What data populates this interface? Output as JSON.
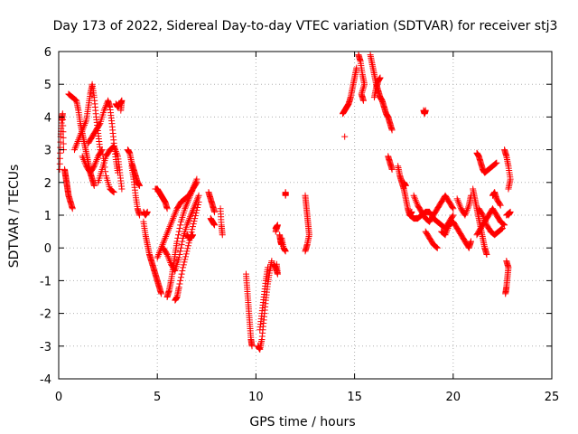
{
  "chart_data": {
    "type": "scatter",
    "title": "Day 173 of 2022, Sidereal Day-to-day VTEC variation (SDTVAR) for receiver stj3",
    "xlabel": "GPS time / hours",
    "ylabel": "SDTVAR / TECUs",
    "xlim": [
      0,
      25
    ],
    "ylim": [
      -4,
      6
    ],
    "xticks": [
      "0",
      "5",
      "10",
      "15",
      "20",
      "25"
    ],
    "yticks": [
      "-4",
      "-3",
      "-2",
      "-1",
      "0",
      "1",
      "2",
      "3",
      "4",
      "5",
      "6"
    ],
    "grid": true,
    "marker": "+",
    "color": "#ff0000",
    "tracks": [
      [
        [
          0.05,
          2.4
        ],
        [
          0.1,
          3.4
        ],
        [
          0.15,
          3.9
        ],
        [
          0.2,
          4.1
        ],
        [
          0.25,
          3.0
        ]
      ],
      [
        [
          0.3,
          2.4
        ],
        [
          0.35,
          2.2
        ],
        [
          0.4,
          2.0
        ],
        [
          0.45,
          1.8
        ],
        [
          0.5,
          1.6
        ],
        [
          0.6,
          1.4
        ],
        [
          0.7,
          1.2
        ]
      ],
      [
        [
          0.5,
          4.7
        ],
        [
          0.7,
          4.6
        ],
        [
          0.9,
          4.5
        ],
        [
          1.0,
          4.2
        ],
        [
          1.1,
          3.8
        ],
        [
          1.2,
          3.5
        ],
        [
          1.3,
          3.2
        ],
        [
          1.4,
          2.9
        ],
        [
          1.5,
          2.6
        ],
        [
          1.6,
          2.3
        ],
        [
          1.7,
          2.1
        ],
        [
          1.8,
          1.9
        ]
      ],
      [
        [
          0.8,
          3.0
        ],
        [
          1.0,
          3.3
        ],
        [
          1.2,
          3.6
        ],
        [
          1.4,
          3.9
        ],
        [
          1.5,
          4.3
        ],
        [
          1.6,
          4.7
        ],
        [
          1.7,
          5.0
        ],
        [
          1.8,
          4.6
        ],
        [
          1.9,
          4.0
        ],
        [
          2.0,
          3.5
        ],
        [
          2.1,
          3.0
        ]
      ],
      [
        [
          1.5,
          3.2
        ],
        [
          1.7,
          3.4
        ],
        [
          1.9,
          3.6
        ],
        [
          2.1,
          3.8
        ],
        [
          2.3,
          4.2
        ],
        [
          2.5,
          4.5
        ],
        [
          2.6,
          4.3
        ],
        [
          2.7,
          3.8
        ],
        [
          2.8,
          3.2
        ],
        [
          2.9,
          2.7
        ],
        [
          3.0,
          2.3
        ]
      ],
      [
        [
          2.0,
          2.0
        ],
        [
          2.2,
          2.4
        ],
        [
          2.4,
          2.8
        ],
        [
          2.6,
          3.0
        ],
        [
          2.8,
          3.1
        ],
        [
          3.0,
          2.8
        ],
        [
          3.1,
          2.3
        ],
        [
          3.2,
          1.8
        ]
      ],
      [
        [
          1.2,
          2.8
        ],
        [
          1.4,
          2.5
        ],
        [
          1.6,
          2.3
        ],
        [
          1.8,
          2.5
        ],
        [
          2.0,
          2.8
        ],
        [
          2.2,
          3.0
        ],
        [
          2.4,
          2.2
        ],
        [
          2.6,
          1.8
        ],
        [
          2.8,
          1.7
        ]
      ],
      [
        [
          2.9,
          4.4
        ],
        [
          3.0,
          4.3
        ],
        [
          3.1,
          4.4
        ],
        [
          3.2,
          4.5
        ],
        [
          3.15,
          4.2
        ]
      ],
      [
        [
          3.5,
          3.0
        ],
        [
          3.6,
          2.9
        ],
        [
          3.7,
          2.6
        ],
        [
          3.8,
          2.4
        ],
        [
          3.9,
          2.2
        ],
        [
          4.0,
          2.0
        ],
        [
          4.1,
          1.9
        ]
      ],
      [
        [
          3.7,
          2.5
        ],
        [
          3.8,
          2.1
        ],
        [
          3.9,
          1.6
        ],
        [
          4.0,
          1.2
        ],
        [
          4.1,
          1.0
        ]
      ],
      [
        [
          4.3,
          1.1
        ],
        [
          4.4,
          1.0
        ],
        [
          4.5,
          1.1
        ]
      ],
      [
        [
          4.3,
          0.8
        ],
        [
          4.4,
          0.4
        ],
        [
          4.5,
          0.1
        ],
        [
          4.6,
          -0.2
        ],
        [
          4.7,
          -0.4
        ],
        [
          4.8,
          -0.6
        ],
        [
          4.9,
          -0.8
        ],
        [
          5.0,
          -1.0
        ],
        [
          5.1,
          -1.2
        ],
        [
          5.2,
          -1.4
        ]
      ],
      [
        [
          4.9,
          1.8
        ],
        [
          5.0,
          1.8
        ],
        [
          5.1,
          1.7
        ],
        [
          5.2,
          1.6
        ],
        [
          5.3,
          1.5
        ],
        [
          5.4,
          1.4
        ],
        [
          5.5,
          1.2
        ]
      ],
      [
        [
          5.0,
          -0.3
        ],
        [
          5.2,
          0.0
        ],
        [
          5.4,
          0.3
        ],
        [
          5.6,
          0.6
        ],
        [
          5.8,
          0.9
        ],
        [
          6.0,
          1.2
        ],
        [
          6.2,
          1.4
        ],
        [
          6.4,
          1.5
        ],
        [
          6.6,
          1.6
        ],
        [
          6.8,
          1.8
        ],
        [
          7.0,
          2.0
        ]
      ],
      [
        [
          5.5,
          -1.5
        ],
        [
          5.6,
          -1.3
        ],
        [
          5.7,
          -1.0
        ],
        [
          5.8,
          -0.6
        ],
        [
          5.9,
          -0.2
        ],
        [
          6.0,
          0.2
        ],
        [
          6.2,
          0.8
        ],
        [
          6.4,
          1.2
        ],
        [
          6.6,
          1.5
        ],
        [
          6.8,
          1.8
        ],
        [
          7.0,
          2.1
        ]
      ],
      [
        [
          5.3,
          0.0
        ],
        [
          5.5,
          -0.2
        ],
        [
          5.7,
          -0.5
        ],
        [
          5.9,
          -0.7
        ],
        [
          6.1,
          -0.3
        ],
        [
          6.3,
          0.3
        ],
        [
          6.5,
          0.7
        ],
        [
          6.7,
          1.0
        ],
        [
          6.9,
          1.3
        ],
        [
          7.1,
          1.6
        ]
      ],
      [
        [
          5.9,
          -1.6
        ],
        [
          6.0,
          -1.5
        ],
        [
          6.1,
          -1.2
        ],
        [
          6.3,
          -0.6
        ],
        [
          6.5,
          -0.1
        ],
        [
          6.7,
          0.4
        ],
        [
          6.9,
          0.9
        ],
        [
          7.1,
          1.4
        ]
      ],
      [
        [
          6.5,
          0.4
        ],
        [
          6.6,
          0.3
        ],
        [
          6.7,
          0.3
        ],
        [
          6.8,
          0.4
        ]
      ],
      [
        [
          7.6,
          1.7
        ],
        [
          7.7,
          1.5
        ],
        [
          7.8,
          1.3
        ],
        [
          7.9,
          1.1
        ]
      ],
      [
        [
          7.7,
          0.9
        ],
        [
          7.8,
          0.8
        ],
        [
          7.9,
          0.7
        ]
      ],
      [
        [
          8.2,
          1.2
        ],
        [
          8.25,
          0.7
        ],
        [
          8.3,
          0.4
        ]
      ],
      [
        [
          9.5,
          -0.8
        ],
        [
          9.55,
          -1.2
        ],
        [
          9.6,
          -1.6
        ],
        [
          9.65,
          -2.0
        ],
        [
          9.7,
          -2.4
        ],
        [
          9.75,
          -2.8
        ],
        [
          9.8,
          -3.0
        ]
      ],
      [
        [
          10.1,
          -3.0
        ],
        [
          10.2,
          -3.1
        ],
        [
          10.3,
          -2.8
        ],
        [
          10.4,
          -2.2
        ],
        [
          10.5,
          -1.6
        ],
        [
          10.6,
          -1.1
        ],
        [
          10.7,
          -0.7
        ],
        [
          10.8,
          -0.4
        ]
      ],
      [
        [
          10.2,
          -2.5
        ],
        [
          10.3,
          -2.0
        ],
        [
          10.4,
          -1.5
        ],
        [
          10.5,
          -1.0
        ],
        [
          10.6,
          -0.6
        ]
      ],
      [
        [
          10.9,
          -0.5
        ],
        [
          11.0,
          -0.6
        ],
        [
          11.1,
          -0.8
        ],
        [
          11.05,
          -0.5
        ]
      ],
      [
        [
          11.2,
          0.4
        ],
        [
          11.25,
          0.2
        ],
        [
          11.3,
          0.1
        ]
      ],
      [
        [
          11.0,
          0.6
        ],
        [
          11.1,
          0.7
        ],
        [
          11.0,
          0.5
        ]
      ],
      [
        [
          11.5,
          1.7
        ],
        [
          11.5,
          1.6
        ]
      ],
      [
        [
          11.3,
          0.3
        ],
        [
          11.4,
          0.0
        ],
        [
          11.5,
          -0.1
        ]
      ],
      [
        [
          12.5,
          1.6
        ],
        [
          12.55,
          1.3
        ],
        [
          12.6,
          1.0
        ],
        [
          12.65,
          0.7
        ],
        [
          12.7,
          0.4
        ],
        [
          12.6,
          0.1
        ],
        [
          12.5,
          -0.1
        ]
      ],
      [
        [
          14.5,
          3.4
        ]
      ],
      [
        [
          14.4,
          4.1
        ],
        [
          14.5,
          4.2
        ],
        [
          14.6,
          4.3
        ],
        [
          14.7,
          4.4
        ],
        [
          14.8,
          4.6
        ],
        [
          14.9,
          4.9
        ],
        [
          15.0,
          5.2
        ],
        [
          15.1,
          5.5
        ]
      ],
      [
        [
          15.2,
          5.9
        ],
        [
          15.3,
          5.7
        ],
        [
          15.4,
          5.3
        ],
        [
          15.5,
          5.0
        ],
        [
          15.35,
          4.7
        ],
        [
          15.45,
          4.5
        ]
      ],
      [
        [
          15.8,
          5.9
        ],
        [
          15.9,
          5.6
        ],
        [
          16.0,
          5.3
        ],
        [
          16.1,
          5.0
        ],
        [
          16.2,
          4.8
        ],
        [
          16.3,
          4.6
        ],
        [
          16.4,
          4.5
        ],
        [
          16.5,
          4.3
        ],
        [
          16.6,
          4.1
        ],
        [
          16.7,
          4.0
        ],
        [
          16.8,
          3.8
        ],
        [
          16.9,
          3.6
        ]
      ],
      [
        [
          16.0,
          4.6
        ],
        [
          16.1,
          4.9
        ],
        [
          16.2,
          5.1
        ],
        [
          16.3,
          5.2
        ]
      ],
      [
        [
          16.7,
          2.8
        ],
        [
          16.8,
          2.6
        ],
        [
          16.9,
          2.4
        ]
      ],
      [
        [
          17.2,
          2.5
        ],
        [
          17.3,
          2.2
        ],
        [
          17.4,
          2.0
        ],
        [
          17.5,
          1.8
        ],
        [
          17.6,
          1.5
        ],
        [
          17.7,
          1.2
        ],
        [
          17.8,
          1.0
        ],
        [
          17.9,
          1.1
        ]
      ],
      [
        [
          17.5,
          2.0
        ],
        [
          17.6,
          1.9
        ]
      ],
      [
        [
          18.0,
          1.6
        ],
        [
          18.2,
          1.3
        ],
        [
          18.4,
          1.1
        ],
        [
          18.6,
          0.9
        ],
        [
          18.8,
          0.8
        ],
        [
          19.0,
          1.0
        ],
        [
          19.2,
          1.2
        ],
        [
          19.4,
          1.4
        ],
        [
          19.6,
          1.6
        ],
        [
          19.8,
          1.4
        ],
        [
          20.0,
          1.2
        ]
      ],
      [
        [
          17.8,
          1.0
        ],
        [
          18.0,
          0.9
        ],
        [
          18.2,
          0.9
        ],
        [
          18.4,
          1.0
        ],
        [
          18.6,
          1.1
        ],
        [
          18.8,
          1.1
        ],
        [
          19.0,
          0.9
        ],
        [
          19.2,
          0.8
        ],
        [
          19.4,
          0.7
        ],
        [
          19.6,
          0.6
        ],
        [
          19.8,
          0.8
        ],
        [
          20.0,
          1.0
        ]
      ],
      [
        [
          18.5,
          4.2
        ],
        [
          18.55,
          4.1
        ],
        [
          18.6,
          4.2
        ]
      ],
      [
        [
          18.6,
          0.5
        ],
        [
          18.8,
          0.3
        ],
        [
          19.0,
          0.1
        ],
        [
          19.2,
          0.0
        ]
      ],
      [
        [
          19.4,
          0.5
        ],
        [
          19.6,
          0.4
        ],
        [
          19.8,
          0.7
        ],
        [
          20.0,
          0.8
        ],
        [
          20.2,
          0.6
        ],
        [
          20.4,
          0.4
        ],
        [
          20.6,
          0.2
        ],
        [
          20.8,
          0.0
        ],
        [
          20.9,
          0.2
        ]
      ],
      [
        [
          20.2,
          1.5
        ],
        [
          20.4,
          1.2
        ],
        [
          20.6,
          1.0
        ],
        [
          20.8,
          1.3
        ],
        [
          20.9,
          1.6
        ]
      ],
      [
        [
          21.2,
          2.9
        ],
        [
          21.3,
          2.8
        ],
        [
          21.4,
          2.6
        ],
        [
          21.5,
          2.4
        ],
        [
          21.6,
          2.3
        ],
        [
          21.8,
          2.4
        ],
        [
          22.0,
          2.5
        ],
        [
          22.2,
          2.6
        ]
      ],
      [
        [
          21.0,
          1.8
        ],
        [
          21.1,
          1.5
        ],
        [
          21.2,
          1.2
        ],
        [
          21.3,
          0.9
        ],
        [
          21.4,
          0.6
        ],
        [
          21.5,
          0.3
        ],
        [
          21.6,
          0.0
        ],
        [
          21.7,
          -0.2
        ]
      ],
      [
        [
          21.2,
          0.4
        ],
        [
          21.4,
          0.6
        ],
        [
          21.6,
          0.8
        ],
        [
          21.8,
          1.0
        ],
        [
          22.0,
          1.2
        ],
        [
          22.2,
          1.0
        ],
        [
          22.4,
          0.8
        ],
        [
          22.6,
          0.7
        ]
      ],
      [
        [
          21.3,
          1.2
        ],
        [
          21.5,
          1.0
        ],
        [
          21.7,
          0.7
        ],
        [
          21.9,
          0.5
        ],
        [
          22.1,
          0.4
        ],
        [
          22.3,
          0.5
        ],
        [
          22.5,
          0.6
        ]
      ],
      [
        [
          22.0,
          1.6
        ],
        [
          22.1,
          1.7
        ],
        [
          22.2,
          1.5
        ],
        [
          22.4,
          1.3
        ]
      ],
      [
        [
          22.6,
          3.0
        ],
        [
          22.7,
          2.8
        ],
        [
          22.8,
          2.5
        ],
        [
          22.9,
          2.1
        ],
        [
          22.8,
          1.8
        ]
      ],
      [
        [
          22.8,
          1.0
        ],
        [
          22.9,
          1.1
        ],
        [
          22.7,
          1.0
        ]
      ],
      [
        [
          22.7,
          -0.4
        ],
        [
          22.8,
          -0.6
        ],
        [
          22.75,
          -0.9
        ],
        [
          22.7,
          -1.2
        ],
        [
          22.65,
          -1.4
        ]
      ]
    ]
  }
}
